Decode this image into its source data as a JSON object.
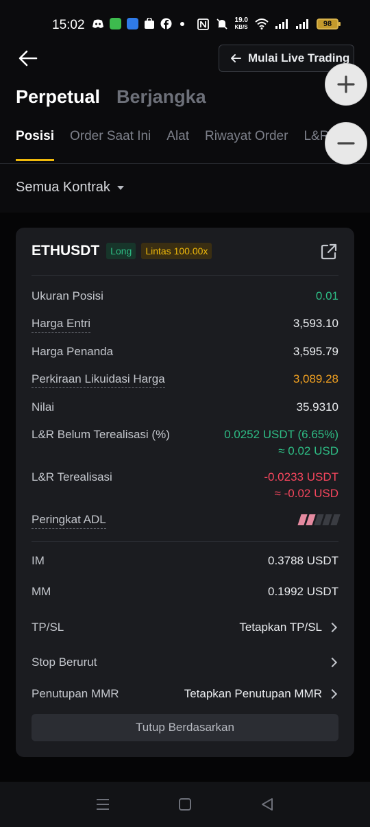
{
  "status_bar": {
    "time": "15:02",
    "speed_value": "19.0",
    "speed_unit": "KB/S",
    "battery": "98"
  },
  "header": {
    "live_button_label": "Mulai Live Trading",
    "main_tabs": [
      {
        "label": "Perpetual",
        "active": true
      },
      {
        "label": "Berjangka",
        "active": false
      }
    ],
    "sub_tabs": [
      {
        "label": "Posisi",
        "active": true
      },
      {
        "label": "Order Saat Ini",
        "active": false
      },
      {
        "label": "Alat",
        "active": false
      },
      {
        "label": "Riwayat Order",
        "active": false
      },
      {
        "label": "L&R",
        "active": false
      }
    ],
    "filter_label": "Semua Kontrak"
  },
  "position": {
    "symbol": "ETHUSDT",
    "side": "Long",
    "leverage": "Lintas 100.00x",
    "rows": {
      "size": {
        "label": "Ukuran Posisi",
        "value": "0.01"
      },
      "entry": {
        "label": "Harga Entri",
        "value": "3,593.10"
      },
      "mark": {
        "label": "Harga Penanda",
        "value": "3,595.79"
      },
      "liq": {
        "label": "Perkiraan Likuidasi Harga",
        "value": "3,089.28"
      },
      "value": {
        "label": "Nilai",
        "value": "35.9310"
      },
      "unrealized": {
        "label": "L&R Belum Terealisasi (%)",
        "value": "0.0252 USDT (6.65%)",
        "value2": "≈ 0.02 USD"
      },
      "realized": {
        "label": "L&R Terealisasi",
        "value": "-0.0233 USDT",
        "value2": "≈ -0.02 USD"
      },
      "adl": {
        "label": "Peringkat ADL"
      },
      "im": {
        "label": "IM",
        "value": "0.3788 USDT"
      },
      "mm": {
        "label": "MM",
        "value": "0.1992 USDT"
      },
      "tpsl": {
        "label": "TP/SL",
        "value": "Tetapkan TP/SL"
      },
      "trailing": {
        "label": "Stop Berurut"
      },
      "mmr": {
        "label": "Penutupan MMR",
        "value": "Tetapkan Penutupan MMR"
      }
    },
    "close_button_label": "Tutup Berdasarkan"
  },
  "colors": {
    "accent": "#f0b90b",
    "green": "#2ebd85",
    "red": "#f6465d",
    "card": "#1b1c20"
  },
  "icons": [
    "back-arrow-icon",
    "external-link-icon",
    "zoom-in-icon",
    "zoom-out-icon",
    "chevron-right-icon",
    "caret-down-icon",
    "menu-icon",
    "home-icon",
    "back-icon"
  ]
}
